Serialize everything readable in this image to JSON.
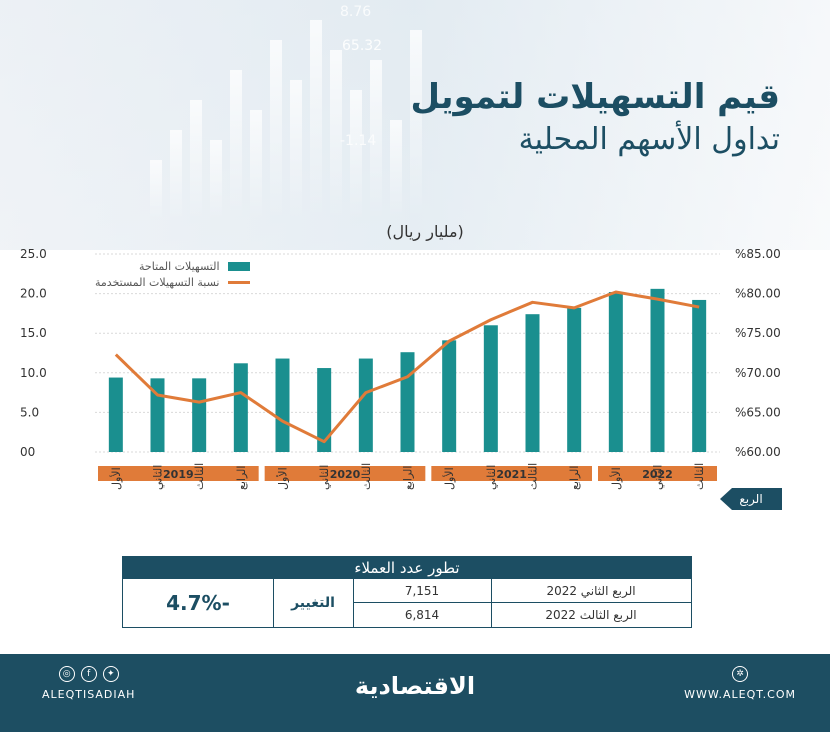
{
  "title": {
    "line1": "قيم التسهيلات لتمويل",
    "line2": "تداول الأسهم المحلية"
  },
  "unit": "(مليار ريال)",
  "background_numbers": [
    "8.76",
    "65.32",
    "-1.14"
  ],
  "legend": {
    "bars": "التسهيلات المتاحة",
    "line": "نسبة التسهيلات المستخدمة"
  },
  "colors": {
    "bar": "#1a8f8f",
    "line": "#e07b39",
    "dark": "#1c4e63",
    "year_band": "#e07b39"
  },
  "quarter_badge": "الربع",
  "chart_data": {
    "type": "bar",
    "categories": [
      "الأول",
      "الثاني",
      "الثالث",
      "الرابع",
      "الأول",
      "الثاني",
      "الثالث",
      "الرابع",
      "الأول",
      "الثاني",
      "الثالث",
      "الرابع",
      "الأول",
      "الثاني",
      "الثالث"
    ],
    "years": [
      {
        "label": "2019",
        "start": 0,
        "end": 3
      },
      {
        "label": "2020",
        "start": 4,
        "end": 7
      },
      {
        "label": "2021",
        "start": 8,
        "end": 11
      },
      {
        "label": "2022",
        "start": 12,
        "end": 14
      }
    ],
    "series": [
      {
        "name": "التسهيلات المتاحة",
        "type": "bar",
        "axis": "left",
        "values": [
          9.4,
          9.3,
          9.3,
          11.2,
          11.8,
          10.6,
          11.8,
          12.6,
          14.1,
          16.0,
          17.4,
          18.2,
          20.2,
          20.6,
          19.2
        ]
      },
      {
        "name": "نسبة التسهيلات المستخدمة",
        "type": "line",
        "axis": "right",
        "values": [
          72.3,
          67.2,
          66.3,
          67.5,
          63.9,
          61.3,
          67.5,
          69.5,
          74.0,
          76.7,
          78.9,
          78.2,
          80.2,
          79.3,
          78.3
        ]
      }
    ],
    "y_left": {
      "ticks": [
        "00",
        "5.0",
        "10.0",
        "15.0",
        "20.0",
        "25.0"
      ],
      "range": [
        0,
        25
      ]
    },
    "y_right": {
      "ticks": [
        "%60.00",
        "%65.00",
        "%70.00",
        "%75.00",
        "%80.00",
        "%85.00"
      ],
      "range": [
        60,
        85
      ]
    },
    "grid": true
  },
  "customers_table": {
    "title": "تطور عدد العملاء",
    "rows": [
      {
        "label": "الربع الثاني 2022",
        "value": "7,151"
      },
      {
        "label": "الربع الثالث 2022",
        "value": "6,814"
      }
    ],
    "change_label": "التغيير",
    "change_value": "-4.7%"
  },
  "footer": {
    "handle": "ALEQTISADIAH",
    "brand": "الاقتصادية",
    "website": "WWW.ALEQT.COM",
    "social": [
      "instagram-icon",
      "facebook-icon",
      "twitter-icon"
    ]
  }
}
